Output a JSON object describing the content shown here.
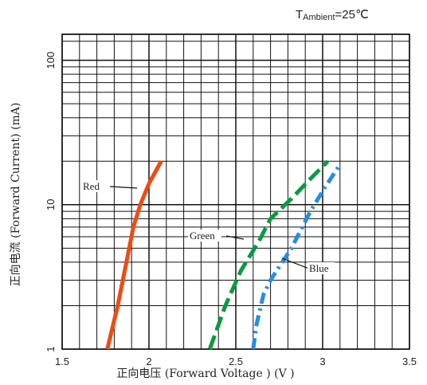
{
  "chart_data": {
    "type": "line",
    "annotation_top": {
      "symbol": "T",
      "subscript": "Ambient",
      "rest": "=25℃"
    },
    "xlabel": "正向电压 (Forward  Voltage ) (V )",
    "ylabel": "正向电流 (Forward  Current) (mA)",
    "xlim": [
      1.5,
      3.5
    ],
    "ylim": [
      1,
      150
    ],
    "yscale": "log",
    "x_ticks": [
      1.5,
      2,
      2.5,
      3,
      3.5
    ],
    "x_tick_labels": [
      "1.5",
      "2",
      "2.5",
      "3",
      "3.5"
    ],
    "y_ticks": [
      1,
      10,
      100
    ],
    "y_tick_labels": [
      "1",
      "10",
      "100"
    ],
    "grid": true,
    "series": [
      {
        "name": "Red",
        "color": "#ef4b14",
        "dash": "solid",
        "x": [
          1.76,
          1.82,
          1.87,
          1.91,
          1.95,
          2.0,
          2.07
        ],
        "y": [
          1,
          2,
          4,
          7,
          10,
          14,
          20
        ]
      },
      {
        "name": "Green",
        "color": "#0b9a42",
        "dash": "dashed",
        "x": [
          2.35,
          2.44,
          2.53,
          2.63,
          2.7,
          2.82,
          2.95,
          3.03
        ],
        "y": [
          1,
          2,
          3.5,
          5.5,
          8,
          11,
          16,
          20
        ]
      },
      {
        "name": "Blue",
        "color": "#2a8be0",
        "dash": "dashdot",
        "x": [
          2.6,
          2.62,
          2.66,
          2.7,
          2.82,
          2.93,
          3.01,
          3.1
        ],
        "y": [
          1,
          1.5,
          2.4,
          3,
          5,
          9,
          13,
          19
        ]
      }
    ]
  }
}
